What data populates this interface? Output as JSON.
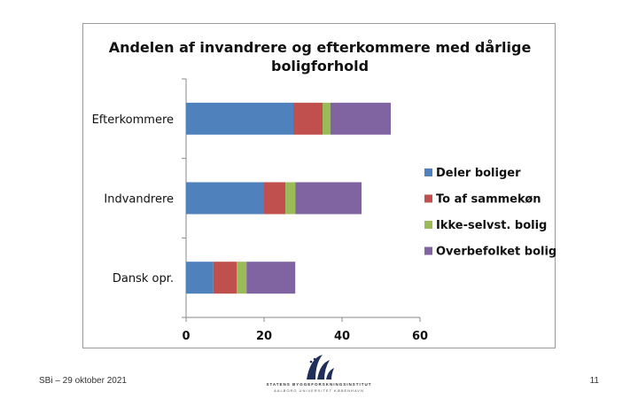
{
  "chart_data": {
    "type": "bar",
    "orientation": "horizontal",
    "stacked": true,
    "title": "Andelen af invandrere og efterkommere med dårlige boligforhold",
    "title_lines": [
      "Andelen af invandrere og efterkommere med dårlige",
      "boligforhold"
    ],
    "categories": [
      "Efterkommere",
      "Indvandrere",
      "Dansk opr."
    ],
    "series": [
      {
        "name": "Deler boliger",
        "color": "#4f81bd",
        "values": [
          27.5,
          20,
          7
        ]
      },
      {
        "name": "To af sammekøn",
        "color": "#c0504d",
        "values": [
          7.5,
          5.5,
          6
        ]
      },
      {
        "name": "Ikke-selvst. bolig",
        "color": "#9bbb59",
        "values": [
          2,
          2.5,
          2.5
        ]
      },
      {
        "name": "Overbefolket bolig",
        "color": "#8064a2",
        "values": [
          15.5,
          17,
          12.5
        ]
      }
    ],
    "xlim": [
      0,
      60
    ],
    "xticks": [
      0,
      20,
      40,
      60
    ],
    "xlabel": "",
    "ylabel": "",
    "grid": false,
    "legend": "right"
  },
  "footer": {
    "date_text": "SBi – 29 oktober 2021",
    "page_number": "11",
    "logo_line1": "STATENS BYGGEFORSKNINGSINSTITUT",
    "logo_line2": "AALBORG UNIVERSITET KØBENHAVN"
  }
}
